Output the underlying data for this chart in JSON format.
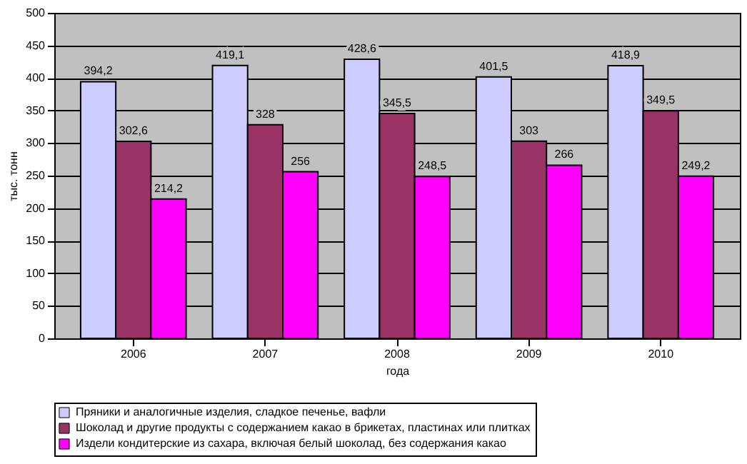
{
  "chart_data": {
    "type": "bar",
    "xlabel": "года",
    "ylabel": "тыс. тонн",
    "categories": [
      "2006",
      "2007",
      "2008",
      "2009",
      "2010"
    ],
    "series": [
      {
        "name": "Пряники и аналогичные изделия, сладкое печенье, вафли",
        "color": "#ccccff",
        "values": [
          394.2,
          419.1,
          428.6,
          401.5,
          418.9
        ],
        "value_labels": [
          "394,2",
          "419,1",
          "428,6",
          "401,5",
          "418,9"
        ]
      },
      {
        "name": "Шоколад и другие продукты с содержанием какао в брикетах, пластинах или плитках",
        "color": "#993366",
        "values": [
          302.6,
          328,
          345.5,
          303,
          349.5
        ],
        "value_labels": [
          "302,6",
          "328",
          "345,5",
          "303",
          "349,5"
        ]
      },
      {
        "name": "Издели кондитерские из сахара, включая белый шоколад, без содержания какао",
        "color": "#ff00ff",
        "values": [
          214.2,
          256,
          248.5,
          266,
          249.2
        ],
        "value_labels": [
          "214,2",
          "256",
          "248,5",
          "266",
          "249,2"
        ]
      }
    ],
    "ylim": [
      0,
      500
    ],
    "yticks": [
      0,
      50,
      100,
      150,
      200,
      250,
      300,
      350,
      400,
      450,
      500
    ],
    "grid": "y",
    "legend": "bottom"
  }
}
